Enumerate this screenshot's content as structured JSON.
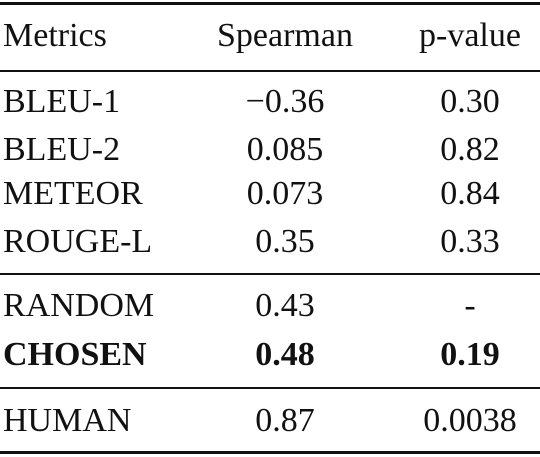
{
  "table": {
    "headers": {
      "metric": "Metrics",
      "spearman": "Spearman",
      "pvalue": "p-value"
    },
    "group1": [
      {
        "metric": "BLEU-1",
        "spearman": "−0.36",
        "pvalue": "0.30"
      },
      {
        "metric": "BLEU-2",
        "spearman": "0.085",
        "pvalue": "0.82"
      },
      {
        "metric": "METEOR",
        "spearman": "0.073",
        "pvalue": "0.84"
      },
      {
        "metric": "ROUGE-L",
        "spearman": "0.35",
        "pvalue": "0.33"
      }
    ],
    "group2": [
      {
        "metric": "RANDOM",
        "spearman": "0.43",
        "pvalue": "-"
      },
      {
        "metric": "CHOSEN",
        "spearman": "0.48",
        "pvalue": "0.19"
      }
    ],
    "group3": [
      {
        "metric": "HUMAN",
        "spearman": "0.87",
        "pvalue": "0.0038"
      }
    ]
  }
}
